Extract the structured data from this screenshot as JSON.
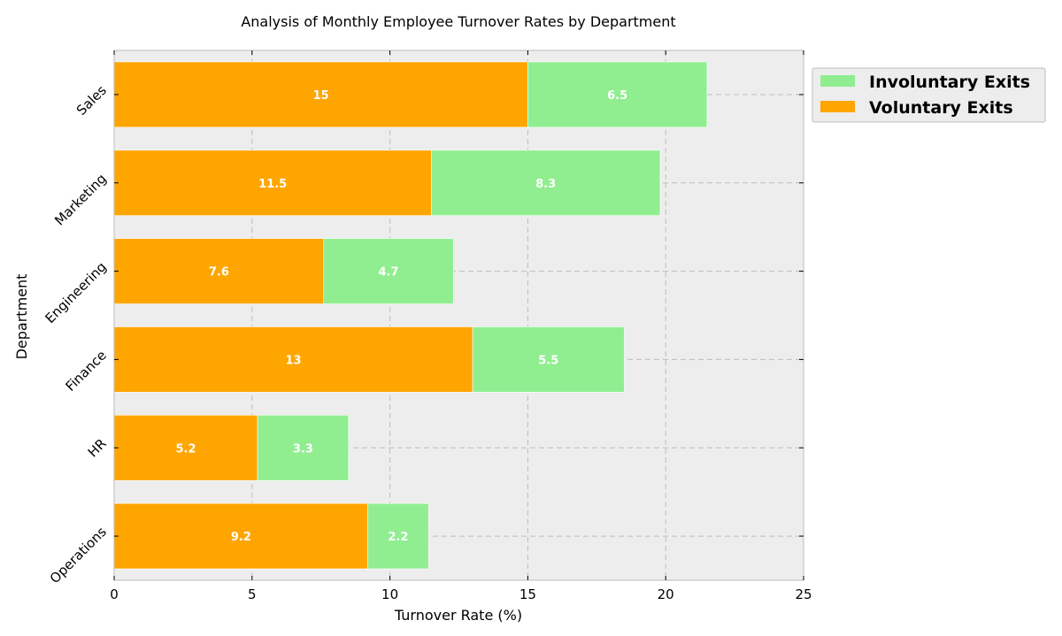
{
  "chart_data": {
    "type": "bar",
    "orientation": "horizontal",
    "stacked": true,
    "title": "Analysis of Monthly Employee Turnover Rates by Department",
    "xlabel": "Turnover Rate (%)",
    "ylabel": "Department",
    "xlim": [
      0,
      25
    ],
    "xticks": [
      "0",
      "5",
      "10",
      "15",
      "20",
      "25"
    ],
    "categories": [
      "Sales",
      "Marketing",
      "Engineering",
      "Finance",
      "HR",
      "Operations"
    ],
    "series": [
      {
        "name": "Voluntary Exits",
        "color": "#FFA500",
        "values": [
          15,
          11.5,
          7.6,
          13,
          5.2,
          9.2
        ],
        "labels": [
          "15",
          "11.5",
          "7.6",
          "13",
          "5.2",
          "9.2"
        ]
      },
      {
        "name": "Involuntary Exits",
        "color": "#90EE90",
        "values": [
          6.5,
          8.3,
          4.7,
          5.5,
          3.3,
          2.2
        ],
        "labels": [
          "6.5",
          "8.3",
          "4.7",
          "5.5",
          "3.3",
          "2.2"
        ]
      }
    ],
    "legend": {
      "position": "right-top",
      "entries": [
        {
          "label": "Involuntary Exits",
          "color": "#90EE90"
        },
        {
          "label": "Voluntary Exits",
          "color": "#FFA500"
        }
      ]
    },
    "grid": true,
    "background": "#EDEDED"
  }
}
